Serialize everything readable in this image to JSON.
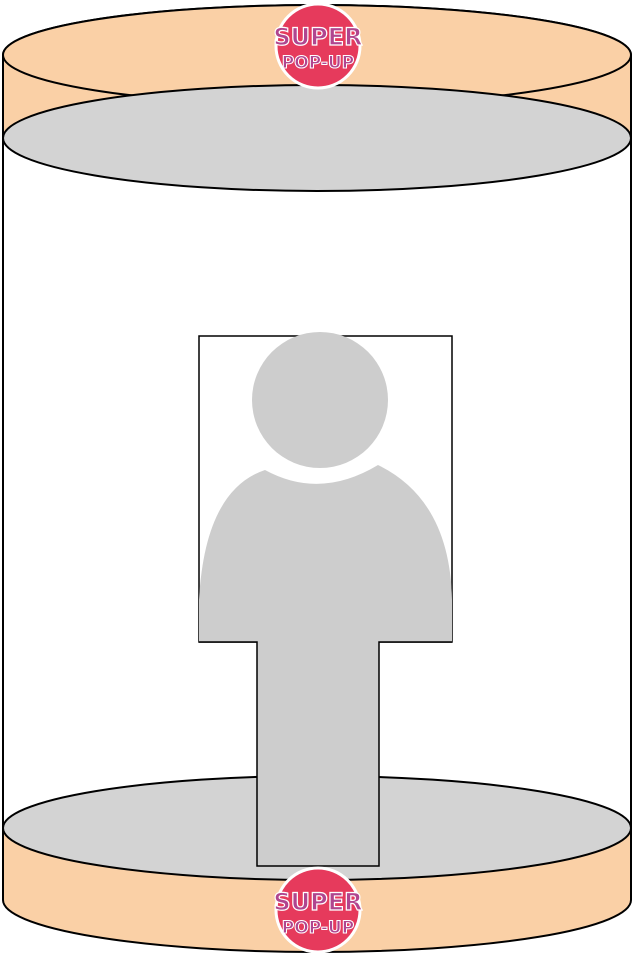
{
  "colors": {
    "band_fill": "#FAD0A6",
    "floor_fill": "#D3D3D3",
    "figure_fill": "#CDCDCD",
    "outline": "#000000",
    "logo_circle": "#E63A5C",
    "logo_text": "#B0458F"
  },
  "logo_top": {
    "line1": "SUPER",
    "line2": "POP-UP"
  },
  "logo_bottom": {
    "line1": "SUPER",
    "line2": "POP-UP"
  },
  "icons": {
    "placeholder": "person-silhouette-icon"
  }
}
